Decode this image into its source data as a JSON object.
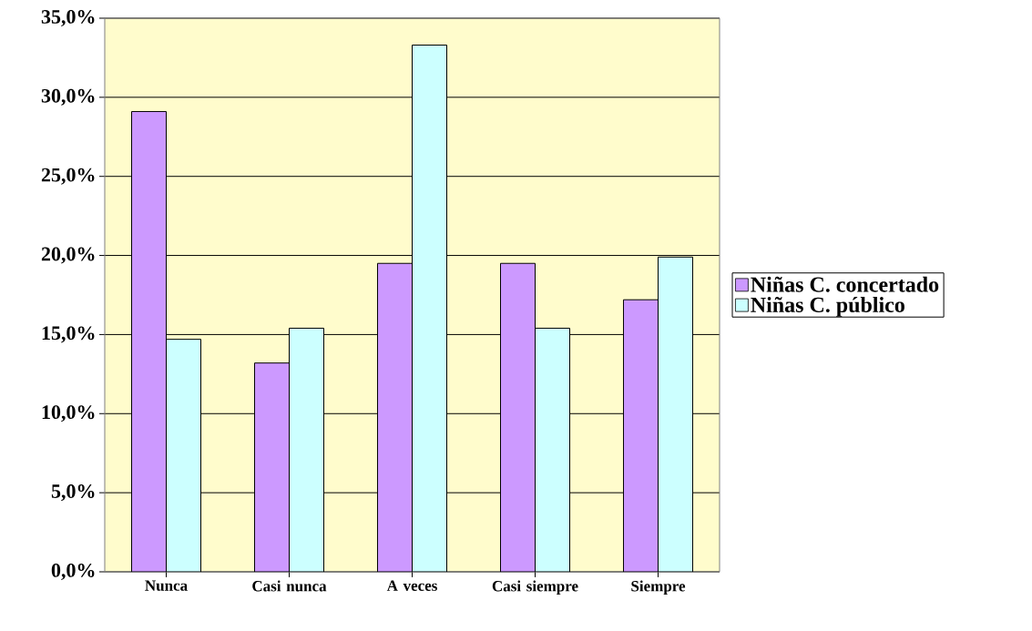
{
  "chart_data": {
    "type": "bar",
    "categories": [
      "Nunca",
      "Casi nunca",
      "A veces",
      "Casi siempre",
      "Siempre"
    ],
    "series": [
      {
        "name": "Niñas C. concertado",
        "color": "#cc99ff",
        "values": [
          29.1,
          13.2,
          19.5,
          19.5,
          17.2
        ]
      },
      {
        "name": "Niñas C. público",
        "color": "#ccffff",
        "values": [
          14.7,
          15.4,
          33.3,
          15.4,
          19.9
        ]
      }
    ],
    "ylim": [
      0,
      35
    ],
    "yticks": [
      {
        "value": 0,
        "label": "0,0%"
      },
      {
        "value": 5,
        "label": "5,0%"
      },
      {
        "value": 10,
        "label": "10,0%"
      },
      {
        "value": 15,
        "label": "15,0%"
      },
      {
        "value": 20,
        "label": "20,0%"
      },
      {
        "value": 25,
        "label": "25,0%"
      },
      {
        "value": 30,
        "label": "30,0%"
      },
      {
        "value": 35,
        "label": "35,0%"
      }
    ],
    "grid": "y",
    "legend": "right"
  }
}
